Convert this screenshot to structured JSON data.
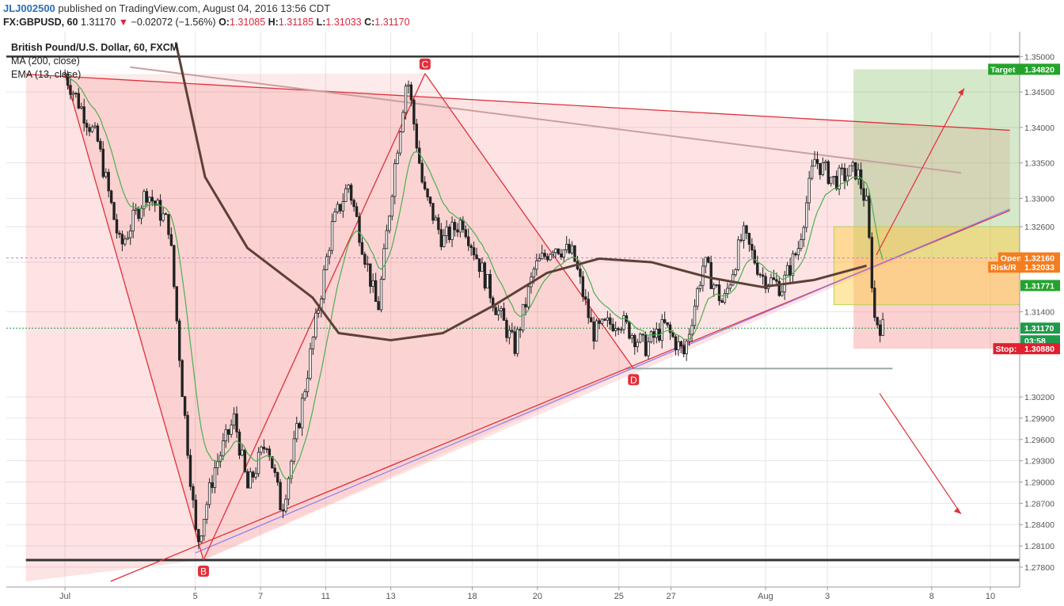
{
  "header": {
    "publisher": "JLJ002500",
    "published_text": "published on TradingView.com, August 04, 2016 13:56 CDT"
  },
  "ticker": {
    "symbol": "FX:GBPUSD, 60",
    "last": "1.31170",
    "change_arrow": "▼",
    "change": "−0.02072 (−1.56%)",
    "o_label": "O:",
    "open": "1.31085",
    "h_label": "H:",
    "high": "1.31185",
    "l_label": "L:",
    "low": "1.31033",
    "c_label": "C:",
    "close": "1.31170"
  },
  "legend": {
    "title": "British Pound/U.S. Dollar, 60, FXCM",
    "ma": "MA (200, close)",
    "ema": "EMA (13, close)"
  },
  "pattern_labels": {
    "c": "C",
    "b": "B",
    "d": "D"
  },
  "price_scale_ticks": [
    "1.35000",
    "1.34500",
    "1.34000",
    "1.33500",
    "1.33000",
    "1.32600",
    "1.32100",
    "1.31400",
    "1.30200",
    "1.29900",
    "1.29600",
    "1.29300",
    "1.29000",
    "1.28700",
    "1.28400",
    "1.28100",
    "1.27800"
  ],
  "price_labels": [
    {
      "label": "Target",
      "value": "1.34820",
      "color": "#23a32a"
    },
    {
      "label": "Open",
      "value": "1.32160",
      "color": "#f47d20"
    },
    {
      "label": "Risk/R",
      "value": "1.32033",
      "color": "#f47d20"
    },
    {
      "label": "",
      "value": "1.31771",
      "color": "#23a32a"
    },
    {
      "label": "",
      "value": "1.31170",
      "color": "#1f9a4b"
    },
    {
      "label": "",
      "value": "03:58",
      "color": "#1f9a4b"
    },
    {
      "label": "Stop:",
      "value": "1.30880",
      "color": "#e0202e"
    }
  ],
  "time_ticks": [
    "Jul",
    "5",
    "7",
    "11",
    "13",
    "18",
    "20",
    "25",
    "27",
    "Aug",
    "3",
    "8",
    "10"
  ],
  "chart_data": {
    "type": "candlestick",
    "title": "British Pound/U.S. Dollar, 60, FXCM",
    "ylim": [
      1.2752,
      1.3535
    ],
    "price_anchors": [
      {
        "d": 0,
        "p": 1.3475
      },
      {
        "d": 1.0,
        "p": 1.338
      },
      {
        "d": 1.7,
        "p": 1.323
      },
      {
        "d": 2.5,
        "p": 1.331
      },
      {
        "d": 3.2,
        "p": 1.326
      },
      {
        "d": 3.6,
        "p": 1.303
      },
      {
        "d": 4.05,
        "p": 1.281
      },
      {
        "d": 4.6,
        "p": 1.292
      },
      {
        "d": 5.2,
        "p": 1.299
      },
      {
        "d": 5.6,
        "p": 1.289
      },
      {
        "d": 6.2,
        "p": 1.296
      },
      {
        "d": 6.65,
        "p": 1.286
      },
      {
        "d": 7.2,
        "p": 1.299
      },
      {
        "d": 8.2,
        "p": 1.326
      },
      {
        "d": 8.7,
        "p": 1.332
      },
      {
        "d": 9.6,
        "p": 1.314
      },
      {
        "d": 10.1,
        "p": 1.334
      },
      {
        "d": 10.5,
        "p": 1.3475
      },
      {
        "d": 11.0,
        "p": 1.331
      },
      {
        "d": 11.6,
        "p": 1.324
      },
      {
        "d": 12.2,
        "p": 1.327
      },
      {
        "d": 13.2,
        "p": 1.315
      },
      {
        "d": 13.8,
        "p": 1.309
      },
      {
        "d": 14.4,
        "p": 1.32
      },
      {
        "d": 15.0,
        "p": 1.3235
      },
      {
        "d": 15.6,
        "p": 1.322
      },
      {
        "d": 16.2,
        "p": 1.311
      },
      {
        "d": 17.0,
        "p": 1.313
      },
      {
        "d": 17.8,
        "p": 1.309
      },
      {
        "d": 18.4,
        "p": 1.312
      },
      {
        "d": 19.0,
        "p": 1.308
      },
      {
        "d": 19.6,
        "p": 1.321
      },
      {
        "d": 20.2,
        "p": 1.315
      },
      {
        "d": 20.8,
        "p": 1.325
      },
      {
        "d": 21.4,
        "p": 1.319
      },
      {
        "d": 22.0,
        "p": 1.3175
      },
      {
        "d": 22.5,
        "p": 1.323
      },
      {
        "d": 23.0,
        "p": 1.3355
      },
      {
        "d": 23.6,
        "p": 1.3325
      },
      {
        "d": 24.3,
        "p": 1.334
      },
      {
        "d": 24.6,
        "p": 1.329
      },
      {
        "d": 24.85,
        "p": 1.313
      },
      {
        "d": 25.1,
        "p": 1.3117
      }
    ],
    "ma200_anchors": [
      {
        "d": 3.4,
        "p": 1.352
      },
      {
        "d": 4.3,
        "p": 1.333
      },
      {
        "d": 5.6,
        "p": 1.323
      },
      {
        "d": 7.6,
        "p": 1.316
      },
      {
        "d": 8.4,
        "p": 1.311
      },
      {
        "d": 10.0,
        "p": 1.31
      },
      {
        "d": 11.6,
        "p": 1.311
      },
      {
        "d": 13.2,
        "p": 1.315
      },
      {
        "d": 14.8,
        "p": 1.3195
      },
      {
        "d": 16.4,
        "p": 1.3215
      },
      {
        "d": 18.0,
        "p": 1.321
      },
      {
        "d": 19.8,
        "p": 1.3188
      },
      {
        "d": 21.4,
        "p": 1.3175
      },
      {
        "d": 23.0,
        "p": 1.3185
      },
      {
        "d": 24.6,
        "p": 1.3205
      }
    ],
    "pattern_points": {
      "x_start": {
        "d": 0,
        "p": 1.3475
      },
      "b": {
        "d": 4.25,
        "p": 1.279
      },
      "c": {
        "d": 11.05,
        "p": 1.3476
      },
      "d": {
        "d": 17.45,
        "p": 1.306
      }
    },
    "horizontal_levels": [
      1.35,
      1.279,
      1.306
    ],
    "position_tool": {
      "entry": 1.3216,
      "target": 1.3482,
      "stop": 1.3088
    },
    "upper_trendline": [
      {
        "d": -1.2,
        "p": 1.3475
      },
      {
        "d": 29.0,
        "p": 1.3396
      }
    ],
    "lower_trendline": [
      {
        "d": 1.4,
        "p": 1.276
      },
      {
        "d": 29.0,
        "p": 1.3283
      }
    ],
    "grey_trendline": [
      {
        "d": 2.0,
        "p": 1.3485
      },
      {
        "d": 27.5,
        "p": 1.3336
      }
    ],
    "last_price": 1.3117
  }
}
